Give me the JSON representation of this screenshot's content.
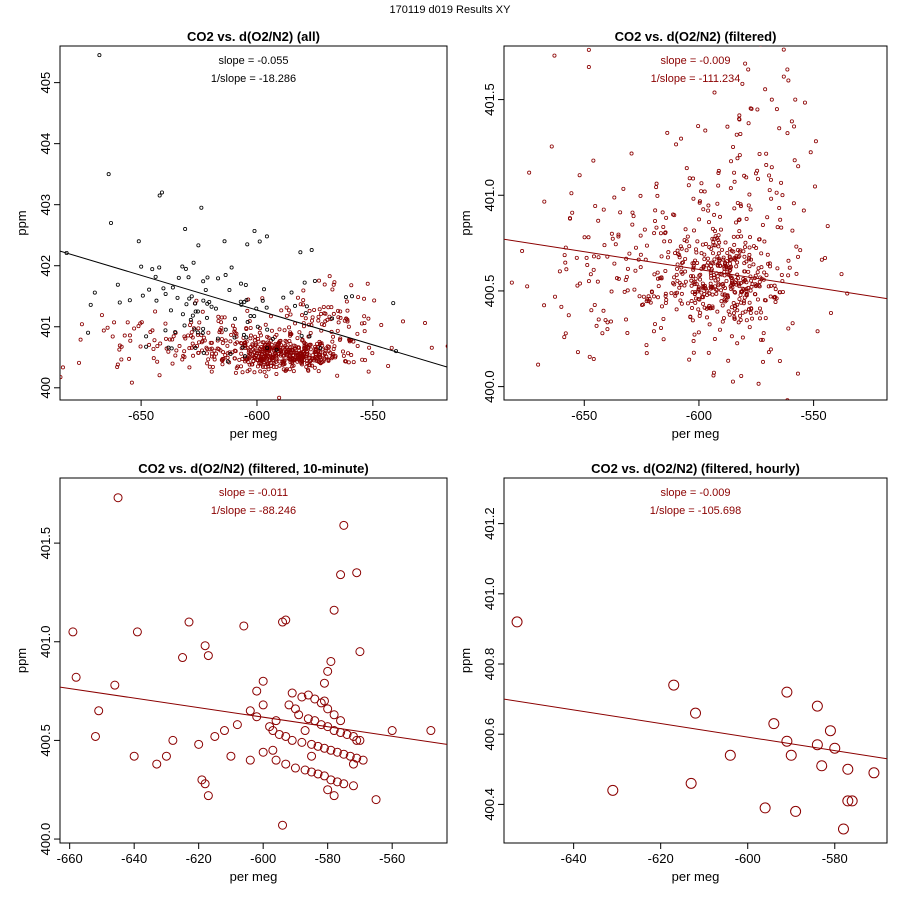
{
  "page": {
    "title": "170119   d019   Results XY"
  },
  "colors": {
    "all_points": "#000000",
    "filtered": "#8b0000",
    "all_line": "#000000"
  },
  "chart_data": [
    {
      "type": "scatter",
      "title": "CO2 vs. d(O2/N2) (all)",
      "xlabel": "per meg",
      "ylabel": "ppm",
      "xlim": [
        -685,
        -518
      ],
      "ylim": [
        399.8,
        405.6
      ],
      "xticks": [
        -650,
        -600,
        -550
      ],
      "yticks": [
        400,
        401,
        402,
        403,
        404,
        405
      ],
      "ytick_labels": [
        "400",
        "401",
        "402",
        "403",
        "404",
        "405"
      ],
      "slope_label": "slope = -0.055",
      "inv_slope_label": "1/slope = -18.286",
      "label_color": "black",
      "fit_line": {
        "x": [
          -685,
          -518
        ],
        "y": [
          402.24,
          400.34
        ],
        "color": "black"
      },
      "cloud": [
        {
          "n": 380,
          "cx": -588,
          "sx": 12,
          "cy": 400.55,
          "sy": 0.12,
          "color": "darkred",
          "r": 1.6,
          "seed": 11
        },
        {
          "n": 240,
          "cx": -610,
          "sx": 30,
          "cy": 400.7,
          "sy": 0.28,
          "color": "darkred",
          "r": 1.6,
          "seed": 12
        },
        {
          "n": 90,
          "cx": -570,
          "sx": 12,
          "cy": 401.1,
          "sy": 0.35,
          "color": "darkred",
          "r": 1.6,
          "seed": 13
        },
        {
          "n": 110,
          "cx": -615,
          "sx": 28,
          "cy": 401.4,
          "sy": 0.55,
          "color": "black",
          "r": 1.6,
          "seed": 14
        }
      ],
      "points": {
        "x": [
          -668,
          -664,
          -663,
          -651,
          -642,
          -641,
          -624,
          -614,
          -575,
          -559,
          -540
        ],
        "y": [
          405.45,
          403.5,
          402.7,
          402.4,
          403.15,
          403.2,
          402.95,
          402.4,
          401.75,
          401.5,
          400.6
        ],
        "color": "black",
        "r": 1.6
      }
    },
    {
      "type": "scatter",
      "title": "CO2 vs. d(O2/N2) (filtered)",
      "xlabel": "per meg",
      "ylabel": "ppm",
      "xlim": [
        -685,
        -518
      ],
      "ylim": [
        399.93,
        401.78
      ],
      "xticks": [
        -650,
        -600,
        -550
      ],
      "yticks": [
        400.0,
        400.5,
        401.0,
        401.5
      ],
      "ytick_labels": [
        "400.0",
        "400.5",
        "401.0",
        "401.5"
      ],
      "slope_label": "slope = -0.009",
      "inv_slope_label": "1/slope = -111.234",
      "label_color": "darkred",
      "fit_line": {
        "x": [
          -685,
          -518
        ],
        "y": [
          400.77,
          400.46
        ],
        "color": "darkred"
      },
      "cloud": [
        {
          "n": 330,
          "cx": -588,
          "sx": 13,
          "cy": 400.55,
          "sy": 0.12,
          "color": "darkred",
          "r": 1.6,
          "seed": 21
        },
        {
          "n": 300,
          "cx": -612,
          "sx": 30,
          "cy": 400.62,
          "sy": 0.3,
          "color": "darkred",
          "r": 1.6,
          "seed": 22
        },
        {
          "n": 60,
          "cx": -572,
          "sx": 10,
          "cy": 401.1,
          "sy": 0.3,
          "color": "darkred",
          "r": 1.6,
          "seed": 23
        }
      ],
      "points": {
        "x": [
          -663,
          -648,
          -648,
          -561,
          -558,
          -563,
          -566,
          -565
        ],
        "y": [
          401.73,
          401.76,
          401.67,
          401.6,
          401.5,
          401.62,
          401.45,
          401.35
        ],
        "color": "darkred",
        "r": 1.6
      }
    },
    {
      "type": "scatter",
      "title": "CO2 vs. d(O2/N2) (filtered, 10-minute)",
      "xlabel": "per meg",
      "ylabel": "ppm",
      "xlim": [
        -663,
        -543
      ],
      "ylim": [
        399.98,
        401.83
      ],
      "xticks": [
        -660,
        -640,
        -620,
        -600,
        -580,
        -560
      ],
      "yticks": [
        400.0,
        400.5,
        401.0,
        401.5
      ],
      "ytick_labels": [
        "400.0",
        "400.5",
        "401.0",
        "401.5"
      ],
      "slope_label": "slope = -0.011",
      "inv_slope_label": "1/slope = -88.246",
      "label_color": "darkred",
      "fit_line": {
        "x": [
          -663,
          -543
        ],
        "y": [
          400.77,
          400.48
        ],
        "color": "darkred"
      },
      "points": {
        "x": [
          -645,
          -571,
          -659,
          -658,
          -639,
          -623,
          -618,
          -617,
          -625,
          -606,
          -600,
          -594,
          -593,
          -575,
          -576,
          -578,
          -570,
          -579,
          -580,
          -581,
          -581,
          -604,
          -602,
          -596,
          -592,
          -590,
          -589,
          -586,
          -584,
          -582,
          -580,
          -578,
          -576,
          -574,
          -572,
          -570,
          -598,
          -597,
          -595,
          -593,
          -591,
          -588,
          -585,
          -583,
          -581,
          -579,
          -577,
          -575,
          -573,
          -571,
          -569,
          -600,
          -596,
          -593,
          -590,
          -587,
          -585,
          -583,
          -581,
          -579,
          -577,
          -575,
          -572,
          -608,
          -612,
          -615,
          -620,
          -628,
          -630,
          -633,
          -640,
          -646,
          -651,
          -652,
          -619,
          -618,
          -617,
          -610,
          -604,
          -597,
          -591,
          -588,
          -586,
          -584,
          -582,
          -580,
          -578,
          -576,
          -571,
          -565,
          -560,
          -548,
          -594,
          -580,
          -578,
          -572,
          -585,
          -587,
          -600,
          -602
        ],
        "y": [
          401.73,
          401.35,
          401.05,
          400.82,
          401.05,
          401.1,
          400.98,
          400.93,
          400.92,
          401.08,
          400.8,
          401.1,
          401.11,
          401.59,
          401.34,
          401.16,
          400.95,
          400.9,
          400.85,
          400.79,
          400.7,
          400.65,
          400.62,
          400.6,
          400.68,
          400.66,
          400.63,
          400.61,
          400.6,
          400.58,
          400.57,
          400.55,
          400.54,
          400.53,
          400.52,
          400.5,
          400.57,
          400.55,
          400.53,
          400.52,
          400.5,
          400.49,
          400.48,
          400.47,
          400.46,
          400.45,
          400.44,
          400.43,
          400.42,
          400.41,
          400.4,
          400.44,
          400.4,
          400.38,
          400.36,
          400.35,
          400.34,
          400.33,
          400.32,
          400.3,
          400.29,
          400.28,
          400.27,
          400.58,
          400.55,
          400.52,
          400.48,
          400.5,
          400.42,
          400.38,
          400.42,
          400.78,
          400.65,
          400.52,
          400.3,
          400.28,
          400.22,
          400.42,
          400.4,
          400.45,
          400.74,
          400.72,
          400.73,
          400.71,
          400.69,
          400.66,
          400.63,
          400.6,
          400.5,
          400.2,
          400.55,
          400.55,
          400.07,
          400.25,
          400.22,
          400.38,
          400.42,
          400.55,
          400.68,
          400.75
        ],
        "color": "darkred",
        "r": 4
      }
    },
    {
      "type": "scatter",
      "title": "CO2 vs. d(O2/N2) (filtered, hourly)",
      "xlabel": "per meg",
      "ylabel": "ppm",
      "xlim": [
        -656,
        -568
      ],
      "ylim": [
        400.29,
        401.33
      ],
      "xticks": [
        -640,
        -620,
        -600,
        -580
      ],
      "yticks": [
        400.4,
        400.6,
        400.8,
        401.0,
        401.2
      ],
      "ytick_labels": [
        "400.4",
        "400.6",
        "400.8",
        "401.0",
        "401.2"
      ],
      "slope_label": "slope = -0.009",
      "inv_slope_label": "1/slope = -105.698",
      "label_color": "darkred",
      "fit_line": {
        "x": [
          -656,
          -568
        ],
        "y": [
          400.7,
          400.53
        ],
        "color": "darkred"
      },
      "points": {
        "x": [
          -653,
          -631,
          -617,
          -612,
          -613,
          -604,
          -596,
          -594,
          -591,
          -591,
          -590,
          -589,
          -584,
          -584,
          -583,
          -581,
          -580,
          -578,
          -577,
          -577,
          -576,
          -571
        ],
        "y": [
          400.92,
          400.44,
          400.74,
          400.66,
          400.46,
          400.54,
          400.39,
          400.63,
          400.72,
          400.58,
          400.54,
          400.38,
          400.68,
          400.57,
          400.51,
          400.61,
          400.56,
          400.33,
          400.5,
          400.41,
          400.41,
          400.49
        ],
        "color": "darkred",
        "r": 5
      }
    }
  ]
}
